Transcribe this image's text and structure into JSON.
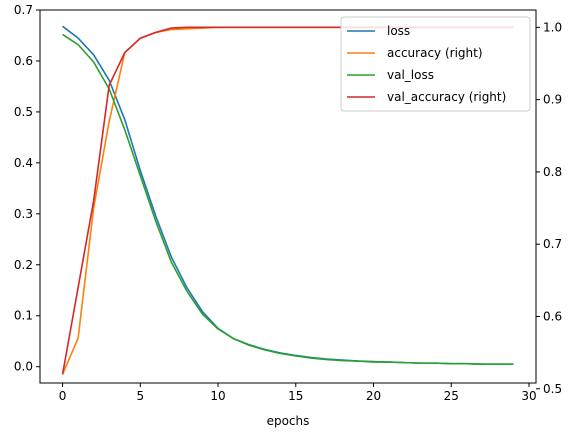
{
  "chart_data": {
    "type": "line",
    "xlabel": "epochs",
    "ylabel": "",
    "y2label": "",
    "xlim": [
      -1.45,
      30.45
    ],
    "ylim": [
      -0.032,
      0.7
    ],
    "y2lim": [
      0.508,
      1.024
    ],
    "xticks": [
      0,
      5,
      10,
      15,
      20,
      25,
      30
    ],
    "yticks": [
      0.0,
      0.1,
      0.2,
      0.3,
      0.4,
      0.5,
      0.6,
      0.7
    ],
    "y2ticks": [
      0.5,
      0.6,
      0.7,
      0.8,
      0.9,
      1.0
    ],
    "grid": false,
    "legend_position": "top-right",
    "x": [
      0,
      1,
      2,
      3,
      4,
      5,
      6,
      7,
      8,
      9,
      10,
      11,
      12,
      13,
      14,
      15,
      16,
      17,
      18,
      19,
      20,
      21,
      22,
      23,
      24,
      25,
      26,
      27,
      28,
      29
    ],
    "series": [
      {
        "name": "loss",
        "axis": "left",
        "color": "#1f77b4",
        "values": [
          0.668,
          0.645,
          0.612,
          0.562,
          0.485,
          0.385,
          0.295,
          0.215,
          0.155,
          0.108,
          0.075,
          0.055,
          0.043,
          0.034,
          0.027,
          0.022,
          0.018,
          0.015,
          0.013,
          0.011,
          0.01,
          0.009,
          0.008,
          0.007,
          0.007,
          0.006,
          0.006,
          0.005,
          0.005,
          0.005
        ]
      },
      {
        "name": "accuracy (right)",
        "axis": "right",
        "color": "#ff7f0e",
        "values": [
          0.52,
          0.57,
          0.75,
          0.87,
          0.965,
          0.985,
          0.993,
          0.997,
          0.998,
          0.999,
          1.0,
          1.0,
          1.0,
          1.0,
          1.0,
          1.0,
          1.0,
          1.0,
          1.0,
          1.0,
          1.0,
          1.0,
          1.0,
          1.0,
          1.0,
          1.0,
          1.0,
          1.0,
          1.0,
          1.0
        ]
      },
      {
        "name": "val_loss",
        "axis": "left",
        "color": "#2ca02c",
        "values": [
          0.652,
          0.632,
          0.598,
          0.545,
          0.465,
          0.375,
          0.285,
          0.205,
          0.148,
          0.103,
          0.074,
          0.055,
          0.042,
          0.033,
          0.026,
          0.021,
          0.017,
          0.014,
          0.012,
          0.011,
          0.009,
          0.009,
          0.008,
          0.007,
          0.007,
          0.006,
          0.006,
          0.005,
          0.005,
          0.005
        ]
      },
      {
        "name": "val_accuracy (right)",
        "axis": "right",
        "color": "#d62728",
        "values": [
          0.52,
          0.64,
          0.76,
          0.92,
          0.965,
          0.985,
          0.993,
          0.999,
          1.0,
          1.0,
          1.0,
          1.0,
          1.0,
          1.0,
          1.0,
          1.0,
          1.0,
          1.0,
          1.0,
          1.0,
          1.0,
          1.0,
          1.0,
          1.0,
          1.0,
          1.0,
          1.0,
          1.0,
          1.0,
          1.0
        ]
      }
    ]
  }
}
